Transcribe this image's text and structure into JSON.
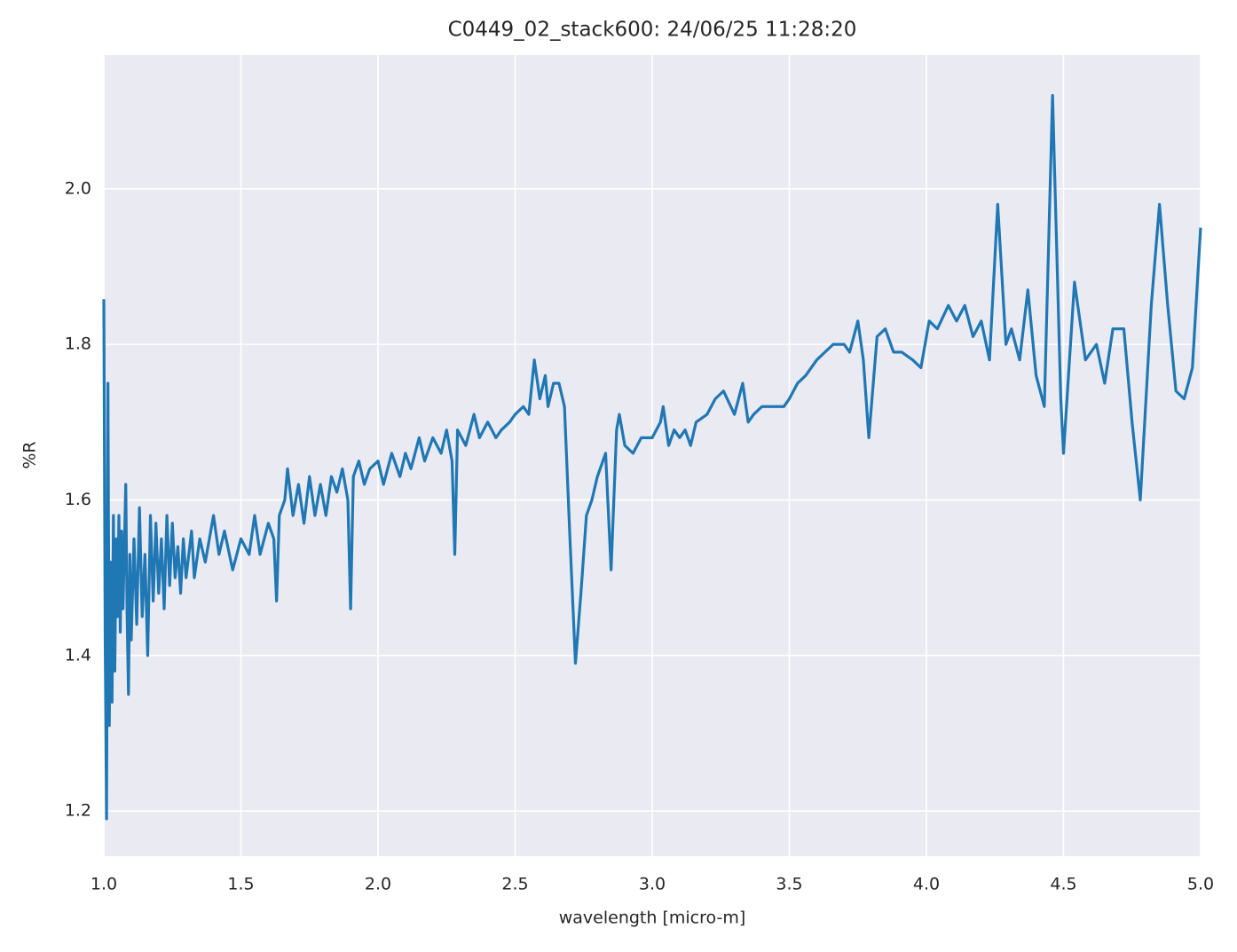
{
  "chart_data": {
    "type": "line",
    "title": "C0449_02_stack600:  24/06/25 11:28:20",
    "x_label": "wavelength [micro-m]",
    "y_label": "%R",
    "color": "#1f77b4",
    "grid": true,
    "xlim": [
      1.0,
      5.0
    ],
    "ylim": [
      1.142,
      2.172
    ],
    "xticks": [
      {
        "value": 1,
        "label": "1.0"
      },
      1.5,
      {
        "value": 2,
        "label": "2.0"
      },
      2.5,
      {
        "value": 3,
        "label": "3.0"
      },
      3.5,
      {
        "value": 4,
        "label": "4.0"
      },
      4.5,
      {
        "value": 5,
        "label": "5.0"
      }
    ],
    "yticks": [
      1.2,
      1.4,
      1.6,
      1.8,
      {
        "value": 2,
        "label": "2.0"
      }
    ],
    "x": [
      1.0,
      1.005,
      1.01,
      1.015,
      1.02,
      1.025,
      1.03,
      1.035,
      1.04,
      1.045,
      1.05,
      1.055,
      1.06,
      1.065,
      1.07,
      1.08,
      1.085,
      1.09,
      1.095,
      1.1,
      1.11,
      1.12,
      1.13,
      1.14,
      1.15,
      1.16,
      1.17,
      1.18,
      1.19,
      1.2,
      1.21,
      1.22,
      1.23,
      1.24,
      1.25,
      1.26,
      1.27,
      1.28,
      1.29,
      1.3,
      1.32,
      1.33,
      1.35,
      1.37,
      1.4,
      1.42,
      1.44,
      1.47,
      1.5,
      1.53,
      1.55,
      1.57,
      1.6,
      1.62,
      1.63,
      1.64,
      1.66,
      1.67,
      1.69,
      1.71,
      1.73,
      1.75,
      1.77,
      1.79,
      1.81,
      1.83,
      1.85,
      1.87,
      1.89,
      1.9,
      1.91,
      1.93,
      1.95,
      1.97,
      2.0,
      2.02,
      2.05,
      2.08,
      2.1,
      2.12,
      2.15,
      2.17,
      2.2,
      2.23,
      2.25,
      2.27,
      2.28,
      2.29,
      2.32,
      2.35,
      2.37,
      2.4,
      2.43,
      2.45,
      2.48,
      2.5,
      2.53,
      2.55,
      2.57,
      2.59,
      2.61,
      2.62,
      2.64,
      2.66,
      2.68,
      2.7,
      2.72,
      2.74,
      2.76,
      2.78,
      2.8,
      2.83,
      2.85,
      2.87,
      2.88,
      2.9,
      2.93,
      2.96,
      3.0,
      3.03,
      3.04,
      3.06,
      3.08,
      3.1,
      3.12,
      3.14,
      3.16,
      3.2,
      3.23,
      3.26,
      3.3,
      3.33,
      3.35,
      3.37,
      3.4,
      3.45,
      3.48,
      3.5,
      3.53,
      3.56,
      3.6,
      3.63,
      3.66,
      3.7,
      3.72,
      3.75,
      3.77,
      3.79,
      3.82,
      3.85,
      3.88,
      3.91,
      3.95,
      3.98,
      4.01,
      4.04,
      4.08,
      4.11,
      4.14,
      4.17,
      4.2,
      4.23,
      4.26,
      4.29,
      4.31,
      4.34,
      4.37,
      4.4,
      4.43,
      4.46,
      4.49,
      4.5,
      4.54,
      4.58,
      4.62,
      4.65,
      4.68,
      4.72,
      4.75,
      4.78,
      4.82,
      4.85,
      4.88,
      4.91,
      4.94,
      4.97,
      5.0
    ],
    "values": [
      1.858,
      1.42,
      1.19,
      1.75,
      1.31,
      1.52,
      1.34,
      1.58,
      1.38,
      1.55,
      1.45,
      1.58,
      1.43,
      1.56,
      1.46,
      1.62,
      1.45,
      1.35,
      1.53,
      1.42,
      1.55,
      1.44,
      1.59,
      1.45,
      1.53,
      1.4,
      1.58,
      1.47,
      1.57,
      1.48,
      1.55,
      1.46,
      1.58,
      1.49,
      1.57,
      1.5,
      1.54,
      1.48,
      1.55,
      1.5,
      1.56,
      1.5,
      1.55,
      1.52,
      1.58,
      1.53,
      1.56,
      1.51,
      1.55,
      1.53,
      1.58,
      1.53,
      1.57,
      1.55,
      1.47,
      1.58,
      1.6,
      1.64,
      1.58,
      1.62,
      1.57,
      1.63,
      1.58,
      1.62,
      1.58,
      1.63,
      1.61,
      1.64,
      1.6,
      1.46,
      1.63,
      1.65,
      1.62,
      1.64,
      1.65,
      1.62,
      1.66,
      1.63,
      1.66,
      1.64,
      1.68,
      1.65,
      1.68,
      1.66,
      1.69,
      1.65,
      1.53,
      1.69,
      1.67,
      1.71,
      1.68,
      1.7,
      1.68,
      1.69,
      1.7,
      1.71,
      1.72,
      1.71,
      1.78,
      1.73,
      1.76,
      1.72,
      1.75,
      1.75,
      1.72,
      1.55,
      1.39,
      1.48,
      1.58,
      1.6,
      1.63,
      1.66,
      1.51,
      1.69,
      1.71,
      1.67,
      1.66,
      1.68,
      1.68,
      1.7,
      1.72,
      1.67,
      1.69,
      1.68,
      1.69,
      1.67,
      1.7,
      1.71,
      1.73,
      1.74,
      1.71,
      1.75,
      1.7,
      1.71,
      1.72,
      1.72,
      1.72,
      1.73,
      1.75,
      1.76,
      1.78,
      1.79,
      1.8,
      1.8,
      1.79,
      1.83,
      1.78,
      1.68,
      1.81,
      1.82,
      1.79,
      1.79,
      1.78,
      1.77,
      1.83,
      1.82,
      1.85,
      1.83,
      1.85,
      1.81,
      1.83,
      1.78,
      1.98,
      1.8,
      1.82,
      1.78,
      1.87,
      1.76,
      1.72,
      2.12,
      1.73,
      1.66,
      1.88,
      1.78,
      1.8,
      1.75,
      1.82,
      1.82,
      1.7,
      1.6,
      1.85,
      1.98,
      1.85,
      1.74,
      1.73,
      1.77,
      1.95
    ]
  }
}
